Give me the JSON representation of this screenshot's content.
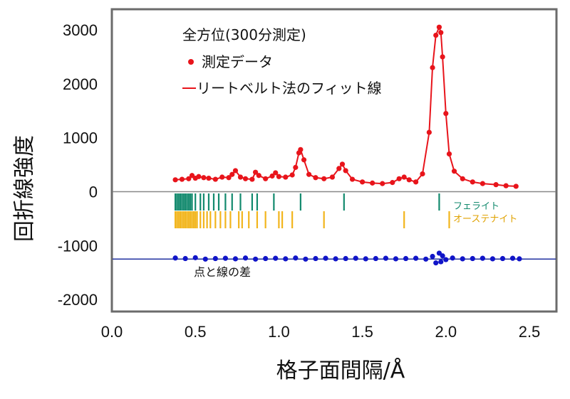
{
  "chart_data": {
    "type": "line",
    "xlabel": "格子面間隔/Å",
    "ylabel": "回折線強度",
    "xlim": [
      0.0,
      2.7
    ],
    "ylim": [
      -2200,
      3150
    ],
    "x_ticks": [
      "0.0",
      "0.5",
      "1.0",
      "1.5",
      "2.0",
      "2.5"
    ],
    "x_tick_values": [
      0.0,
      0.5,
      1.0,
      1.5,
      2.0,
      2.5
    ],
    "y_ticks": [
      "3000",
      "2000",
      "1000",
      "0",
      "-1000",
      "-2000"
    ],
    "y_tick_values": [
      3000,
      2000,
      1000,
      0,
      -1000,
      -2000
    ],
    "grid": false,
    "legend_title": "全方位(300分測定)",
    "legend_placement": "top-left",
    "series": [
      {
        "name": "測定データ",
        "style": "points",
        "color": "#e8141b",
        "x": [
          0.38,
          0.42,
          0.46,
          0.48,
          0.5,
          0.52,
          0.55,
          0.58,
          0.62,
          0.66,
          0.7,
          0.72,
          0.74,
          0.77,
          0.8,
          0.84,
          0.86,
          0.88,
          0.92,
          0.96,
          0.98,
          1.0,
          1.04,
          1.08,
          1.1,
          1.12,
          1.13,
          1.15,
          1.18,
          1.22,
          1.27,
          1.32,
          1.36,
          1.38,
          1.4,
          1.44,
          1.5,
          1.56,
          1.62,
          1.68,
          1.72,
          1.75,
          1.78,
          1.82,
          1.86,
          1.9,
          1.92,
          1.94,
          1.96,
          1.97,
          1.98,
          2.0,
          2.02,
          2.05,
          2.1,
          2.16,
          2.22,
          2.3,
          2.36,
          2.42
        ],
        "values": [
          220,
          230,
          240,
          300,
          250,
          280,
          260,
          250,
          230,
          270,
          260,
          320,
          390,
          270,
          240,
          230,
          360,
          300,
          240,
          290,
          350,
          280,
          270,
          310,
          450,
          720,
          780,
          590,
          320,
          260,
          240,
          270,
          430,
          510,
          390,
          230,
          180,
          160,
          150,
          170,
          240,
          270,
          220,
          180,
          330,
          1100,
          2300,
          2900,
          3050,
          2950,
          2500,
          1450,
          700,
          380,
          240,
          180,
          150,
          130,
          110,
          100
        ]
      },
      {
        "name": "リートベルト法のフィット線",
        "style": "line",
        "color": "#e8141b",
        "x": [
          0.38,
          0.42,
          0.46,
          0.48,
          0.5,
          0.52,
          0.55,
          0.58,
          0.62,
          0.66,
          0.7,
          0.72,
          0.74,
          0.77,
          0.8,
          0.84,
          0.86,
          0.88,
          0.92,
          0.96,
          0.98,
          1.0,
          1.04,
          1.08,
          1.1,
          1.12,
          1.13,
          1.15,
          1.18,
          1.22,
          1.27,
          1.32,
          1.36,
          1.38,
          1.4,
          1.44,
          1.5,
          1.56,
          1.62,
          1.68,
          1.72,
          1.75,
          1.78,
          1.82,
          1.86,
          1.9,
          1.92,
          1.94,
          1.96,
          1.97,
          1.98,
          2.0,
          2.02,
          2.05,
          2.1,
          2.16,
          2.22,
          2.3,
          2.36,
          2.42
        ],
        "values": [
          220,
          230,
          240,
          300,
          250,
          280,
          260,
          250,
          230,
          270,
          260,
          320,
          390,
          270,
          240,
          230,
          360,
          300,
          240,
          290,
          350,
          280,
          270,
          310,
          450,
          720,
          780,
          590,
          320,
          260,
          240,
          270,
          430,
          510,
          390,
          230,
          180,
          160,
          150,
          170,
          240,
          270,
          220,
          180,
          330,
          1100,
          2300,
          2900,
          3050,
          2950,
          2500,
          1450,
          700,
          380,
          240,
          180,
          150,
          130,
          110,
          100
        ]
      },
      {
        "name": "点と線の差",
        "style": "points",
        "color": "#1014c8",
        "x": [
          0.38,
          0.44,
          0.5,
          0.56,
          0.62,
          0.68,
          0.74,
          0.8,
          0.86,
          0.92,
          0.98,
          1.04,
          1.1,
          1.16,
          1.22,
          1.28,
          1.34,
          1.4,
          1.46,
          1.52,
          1.58,
          1.64,
          1.7,
          1.76,
          1.82,
          1.88,
          1.92,
          1.94,
          1.96,
          1.97,
          1.98,
          2.0,
          2.04,
          2.1,
          2.16,
          2.22,
          2.28,
          2.34,
          2.4,
          2.44
        ],
        "values": [
          -1230,
          -1240,
          -1225,
          -1250,
          -1240,
          -1235,
          -1245,
          -1230,
          -1250,
          -1240,
          -1235,
          -1245,
          -1230,
          -1250,
          -1240,
          -1235,
          -1245,
          -1240,
          -1235,
          -1245,
          -1240,
          -1235,
          -1245,
          -1240,
          -1235,
          -1250,
          -1200,
          -1320,
          -1140,
          -1300,
          -1190,
          -1260,
          -1230,
          -1245,
          -1240,
          -1235,
          -1245,
          -1240,
          -1235,
          -1245
        ]
      }
    ],
    "reflection_markers": [
      {
        "name": "フェライト",
        "color": "#138a6e",
        "positions": [
          0.38,
          0.39,
          0.4,
          0.41,
          0.42,
          0.43,
          0.44,
          0.45,
          0.46,
          0.47,
          0.48,
          0.5,
          0.53,
          0.55,
          0.58,
          0.61,
          0.64,
          0.68,
          0.72,
          0.77,
          0.84,
          0.87,
          0.97,
          1.13,
          1.39,
          1.96
        ]
      },
      {
        "name": "オーステナイト",
        "color": "#f2b51c",
        "positions": [
          0.38,
          0.39,
          0.4,
          0.41,
          0.42,
          0.43,
          0.44,
          0.45,
          0.46,
          0.47,
          0.48,
          0.49,
          0.5,
          0.51,
          0.53,
          0.55,
          0.57,
          0.59,
          0.62,
          0.65,
          0.68,
          0.71,
          0.76,
          0.78,
          0.82,
          0.87,
          0.92,
          1.0,
          1.02,
          1.08,
          1.27,
          1.75,
          2.02
        ]
      }
    ],
    "baselines": [
      {
        "value": 0,
        "color": "#888888"
      },
      {
        "value": -1250,
        "color": "#2030a0"
      }
    ],
    "annotations": [
      "点と線の差"
    ]
  }
}
